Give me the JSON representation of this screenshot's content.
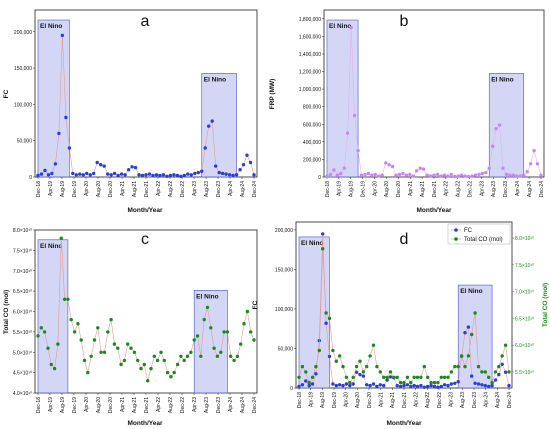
{
  "chart_data": [
    {
      "panel": "a",
      "type": "line",
      "xlabel": "Month/Year",
      "ylabel": "FC",
      "ylim": [
        0,
        230000
      ],
      "yticks": [
        0,
        50000,
        100000,
        150000,
        200000
      ],
      "ytick_labels": [
        "0",
        "50,000",
        "100,000",
        "150,000",
        "200,000"
      ],
      "xticks_labels": [
        "Dec-18",
        "Apr-19",
        "Aug-19",
        "Dec-19",
        "Apr-20",
        "Aug-20",
        "Dec-20",
        "Apr-21",
        "Aug-21",
        "Dec-21",
        "Apr-22",
        "Aug-22",
        "Dec-22",
        "Apr-23",
        "Aug-23",
        "Dec-23",
        "Apr-24",
        "Aug-24",
        "Dec-24"
      ],
      "grid": false,
      "series": [
        {
          "values": [
            2000,
            4000,
            9000,
            3000,
            5000,
            18000,
            60000,
            195000,
            82000,
            40000,
            5000,
            3000,
            4000,
            3000,
            5000,
            3000,
            5000,
            20000,
            17000,
            15000,
            4000,
            3000,
            5000,
            2000,
            4000,
            3000,
            10000,
            14000,
            13000,
            3000,
            2000,
            3000,
            4000,
            2000,
            3000,
            2000,
            3000,
            1000,
            2000,
            3000,
            2000,
            1000,
            2000,
            4000,
            3000,
            5000,
            6000,
            8000,
            40000,
            70000,
            77000,
            15000,
            6000,
            5000,
            4000,
            3000,
            2000,
            3000,
            10000,
            17000,
            30000,
            20000,
            3000
          ]
        }
      ],
      "annotations": [
        {
          "text": "El Nino",
          "x_range": [
            0,
            9
          ]
        },
        {
          "text": "El Nino",
          "x_range": [
            47,
            57
          ]
        }
      ]
    },
    {
      "panel": "b",
      "type": "line",
      "xlabel": "Month/Year",
      "ylabel": "FRP (MW)",
      "ylim": [
        0,
        1900000
      ],
      "yticks": [
        0,
        200000,
        400000,
        600000,
        800000,
        1000000,
        1200000,
        1400000,
        1600000,
        1800000
      ],
      "ytick_labels": [
        "0",
        "200,000",
        "400,000",
        "600,000",
        "800,000",
        "1,000,000",
        "1,200,000",
        "1,400,000",
        "1,600,000",
        "1,800,000"
      ],
      "xticks_labels": [
        "Dec-18",
        "Apr-19",
        "Aug-19",
        "Dec-19",
        "Apr-20",
        "Aug-20",
        "Dec-20",
        "Apr-21",
        "Aug-21",
        "Dec-21",
        "Apr-22",
        "Aug-22",
        "Dec-22",
        "Apr-23",
        "Aug-23",
        "Dec-23",
        "Apr-24",
        "Aug-24",
        "Dec-24"
      ],
      "grid": false,
      "series": [
        {
          "values": [
            10000,
            30000,
            80000,
            20000,
            40000,
            100000,
            500000,
            1700000,
            700000,
            300000,
            20000,
            30000,
            40000,
            20000,
            30000,
            10000,
            20000,
            160000,
            140000,
            120000,
            20000,
            30000,
            40000,
            20000,
            30000,
            10000,
            70000,
            100000,
            90000,
            20000,
            10000,
            20000,
            30000,
            10000,
            20000,
            10000,
            30000,
            5000,
            10000,
            20000,
            10000,
            5000,
            10000,
            20000,
            30000,
            40000,
            50000,
            100000,
            350000,
            550000,
            590000,
            100000,
            30000,
            20000,
            20000,
            10000,
            10000,
            20000,
            60000,
            150000,
            300000,
            150000,
            20000
          ]
        }
      ],
      "annotations": [
        {
          "text": "El Nino",
          "x_range": [
            0,
            9
          ]
        },
        {
          "text": "El Nino",
          "x_range": [
            47,
            57
          ]
        }
      ]
    },
    {
      "panel": "c",
      "type": "line",
      "xlabel": "Month/Year",
      "ylabel": "Total CO (mol)",
      "ylim": [
        4.0,
        8.0
      ],
      "yticks": [
        4.0,
        4.5,
        5.0,
        5.5,
        6.0,
        6.5,
        7.0,
        7.5,
        8.0
      ],
      "ytick_labels": [
        "4.0×10¹⁰",
        "4.5×10¹⁰",
        "5.0×10¹⁰",
        "5.5×10¹⁰",
        "6.0×10¹⁰",
        "6.5×10¹⁰",
        "7.0×10¹⁰",
        "7.5×10¹⁰",
        "8.0×10¹⁰"
      ],
      "xticks_labels": [
        "Dec-18",
        "Apr-19",
        "Aug-19",
        "Dec-19",
        "Apr-20",
        "Aug-20",
        "Dec-20",
        "Apr-21",
        "Aug-21",
        "Dec-21",
        "Apr-22",
        "Aug-22",
        "Dec-22",
        "Apr-23",
        "Aug-23",
        "Dec-23",
        "Apr-24",
        "Aug-24",
        "Dec-24"
      ],
      "grid": false,
      "series": [
        {
          "values": [
            5.4,
            5.6,
            5.5,
            5.1,
            4.7,
            4.6,
            5.2,
            7.8,
            6.3,
            6.3,
            5.8,
            5.5,
            5.7,
            5.3,
            4.8,
            4.5,
            4.9,
            5.3,
            5.6,
            5.0,
            5.0,
            5.5,
            5.8,
            5.2,
            5.1,
            4.7,
            4.8,
            5.2,
            5.1,
            5.0,
            4.8,
            4.6,
            4.7,
            4.3,
            4.6,
            4.9,
            4.8,
            5.0,
            4.8,
            4.5,
            4.4,
            4.5,
            4.7,
            4.9,
            4.8,
            4.9,
            5.0,
            5.3,
            5.4,
            4.9,
            5.8,
            6.1,
            5.6,
            5.1,
            4.9,
            5.0,
            5.5,
            5.5,
            4.9,
            4.8,
            4.9,
            5.2,
            5.7,
            6.0,
            5.5,
            5.3
          ]
        }
      ],
      "annotations": [
        {
          "text": "El Nino",
          "x_range": [
            0,
            9
          ]
        },
        {
          "text": "El Nino",
          "x_range": [
            47,
            57
          ]
        }
      ]
    },
    {
      "panel": "d",
      "type": "line",
      "xlabel": "Month/Year",
      "ylabel": "FC",
      "ylabel_right": "Total CO (mol)",
      "ylim": [
        0,
        210000
      ],
      "ylim_right": [
        5.2,
        8.3
      ],
      "yticks": [
        0,
        50000,
        100000,
        150000,
        200000
      ],
      "ytick_labels": [
        "0",
        "50,000",
        "100,000",
        "150,000",
        "200,000"
      ],
      "yticks_right": [
        5.5,
        6.0,
        6.5,
        7.0,
        7.5,
        8.0
      ],
      "ytick_labels_right": [
        "5.5×10¹⁰",
        "6.0×10¹⁰",
        "6.5×10¹⁰",
        "7.0×10¹⁰",
        "7.5×10¹⁰",
        "8.0×10¹⁰"
      ],
      "xticks_labels": [
        "Dec-18",
        "Apr-19",
        "Aug-19",
        "Dec-19",
        "Apr-20",
        "Aug-20",
        "Dec-20",
        "Apr-21",
        "Aug-21",
        "Dec-21",
        "Apr-22",
        "Aug-22",
        "Dec-22",
        "Apr-23",
        "Aug-23",
        "Dec-23",
        "Apr-24",
        "Aug-24",
        "Dec-24"
      ],
      "grid": false,
      "legend": "top-right",
      "series": [
        {
          "name": "FC",
          "axis": "left",
          "values": [
            2000,
            4000,
            9000,
            3000,
            5000,
            18000,
            60000,
            195000,
            82000,
            40000,
            5000,
            3000,
            4000,
            3000,
            5000,
            3000,
            5000,
            20000,
            17000,
            15000,
            4000,
            3000,
            5000,
            2000,
            4000,
            3000,
            10000,
            14000,
            13000,
            3000,
            2000,
            3000,
            4000,
            2000,
            3000,
            2000,
            3000,
            1000,
            2000,
            3000,
            2000,
            1000,
            2000,
            4000,
            3000,
            5000,
            6000,
            8000,
            40000,
            70000,
            77000,
            15000,
            6000,
            5000,
            4000,
            3000,
            2000,
            3000,
            10000,
            17000,
            30000,
            20000,
            3000
          ]
        },
        {
          "name": "Total CO (mol)",
          "axis": "right",
          "values": [
            5.4,
            5.6,
            5.5,
            5.3,
            5.4,
            5.6,
            5.9,
            7.8,
            6.6,
            6.5,
            5.9,
            5.7,
            5.8,
            5.6,
            5.4,
            5.3,
            5.4,
            5.6,
            5.7,
            5.5,
            5.6,
            5.8,
            6.0,
            5.6,
            5.5,
            5.4,
            5.4,
            5.5,
            5.4,
            5.4,
            5.3,
            5.3,
            5.4,
            5.3,
            5.4,
            5.4,
            5.4,
            5.6,
            5.4,
            5.3,
            5.3,
            5.3,
            5.4,
            5.4,
            5.4,
            5.5,
            5.6,
            5.6,
            5.8,
            5.6,
            5.8,
            6.2,
            6.6,
            5.6,
            5.5,
            5.5,
            5.4,
            5.3,
            5.5,
            5.6,
            5.8,
            6.0,
            5.5
          ]
        }
      ],
      "annotations": [
        {
          "text": "El Nino",
          "x_range": [
            0,
            9
          ]
        },
        {
          "text": "El Nino",
          "x_range": [
            47,
            57
          ]
        }
      ]
    }
  ]
}
